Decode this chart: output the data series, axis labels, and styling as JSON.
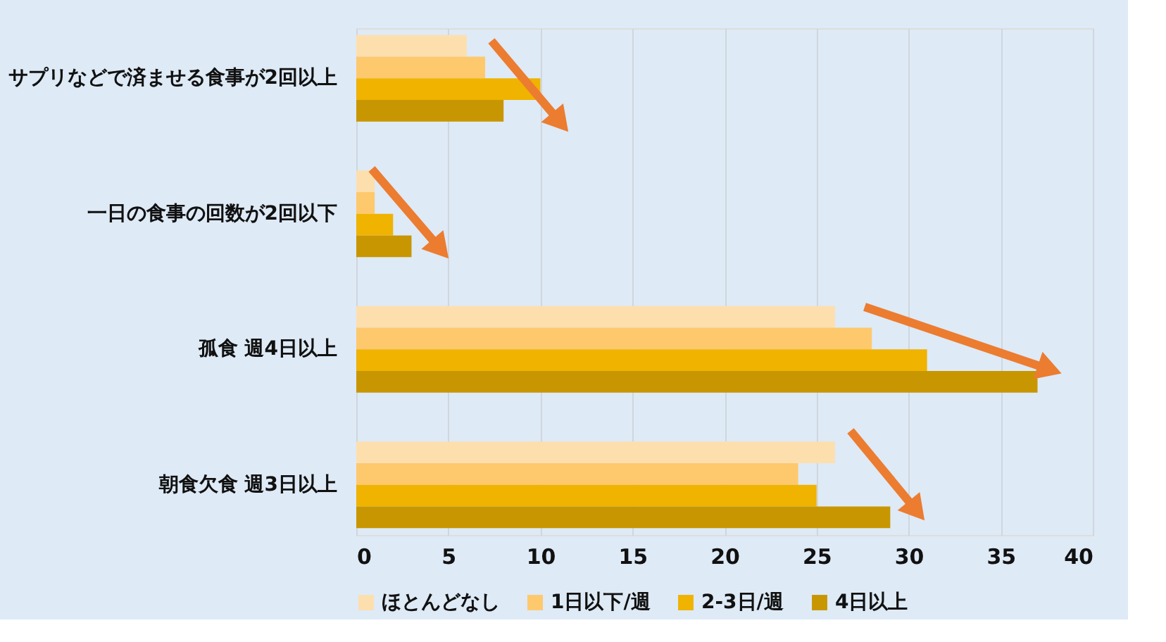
{
  "chart_data": {
    "type": "bar",
    "orientation": "horizontal",
    "categories": [
      "サプリなどで済ませる食事が2回以上",
      "一日の食事の回数が2回以下",
      "孤食 週4日以上",
      "朝食欠食 週3日以上"
    ],
    "series": [
      {
        "name": "ほとんどなし",
        "color": "#fddfae",
        "values": [
          6,
          1,
          26,
          26
        ]
      },
      {
        "name": "1日以下/週",
        "color": "#fec96c",
        "values": [
          7,
          1,
          28,
          24
        ]
      },
      {
        "name": "2-3日/週",
        "color": "#efb300",
        "values": [
          10,
          2,
          31,
          25
        ]
      },
      {
        "name": "4日以上",
        "color": "#c89600",
        "values": [
          8,
          3,
          37,
          29
        ]
      }
    ],
    "xlim": [
      0,
      40
    ],
    "xticks": [
      0,
      5,
      10,
      15,
      20,
      25,
      30,
      35,
      40
    ],
    "grid": "x",
    "legend": "bottom"
  }
}
